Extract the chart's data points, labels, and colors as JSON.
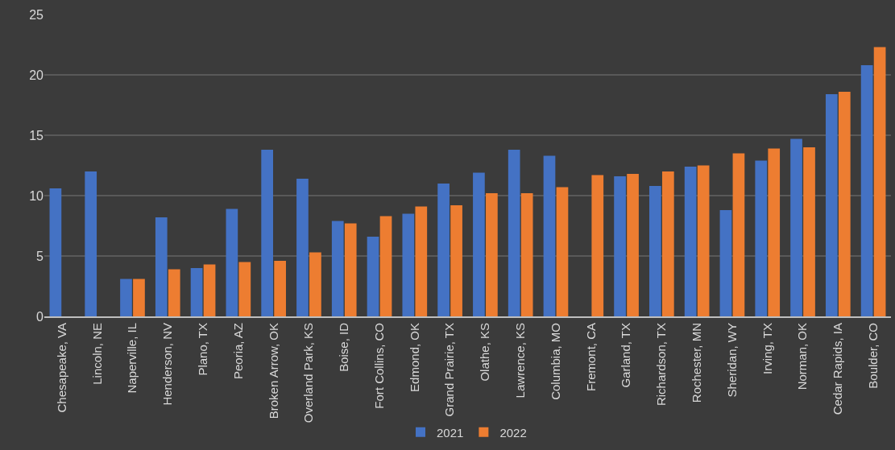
{
  "chart_data": {
    "type": "bar",
    "categories": [
      "Chesapeake, VA",
      "Lincoln, NE",
      "Naperville, IL",
      "Henderson, NV",
      "Plano, TX",
      "Peoria, AZ",
      "Broken Arrow, OK",
      "Overland Park, KS",
      "Boise, ID",
      "Fort Collins, CO",
      "Edmond, OK",
      "Grand Prairie, TX",
      "Olathe, KS",
      "Lawrence, KS",
      "Columbia, MO",
      "Fremont, CA",
      "Garland, TX",
      "Richardson, TX",
      "Rochester, MN",
      "Sheridan, WY",
      "Irving, TX",
      "Norman, OK",
      "Cedar Rapids, IA",
      "Boulder, CO"
    ],
    "series": [
      {
        "name": "2021",
        "color": "#4472c4",
        "values": [
          10.6,
          12.0,
          3.1,
          8.2,
          4.0,
          8.9,
          13.8,
          11.4,
          7.9,
          6.6,
          8.5,
          11.0,
          11.9,
          13.8,
          13.3,
          null,
          11.6,
          10.8,
          12.4,
          8.8,
          12.9,
          14.7,
          18.4,
          20.8
        ]
      },
      {
        "name": "2022",
        "color": "#ed7d31",
        "values": [
          null,
          null,
          3.1,
          3.9,
          4.3,
          4.5,
          4.6,
          5.3,
          7.7,
          8.3,
          9.1,
          9.2,
          10.2,
          10.2,
          10.7,
          11.7,
          11.8,
          12.0,
          12.5,
          13.5,
          13.9,
          14.0,
          18.6,
          22.3
        ]
      }
    ],
    "ylim": [
      0,
      25
    ],
    "yticks": [
      0,
      5,
      10,
      15,
      20,
      25
    ],
    "grid": "y",
    "legend": "bottom"
  }
}
